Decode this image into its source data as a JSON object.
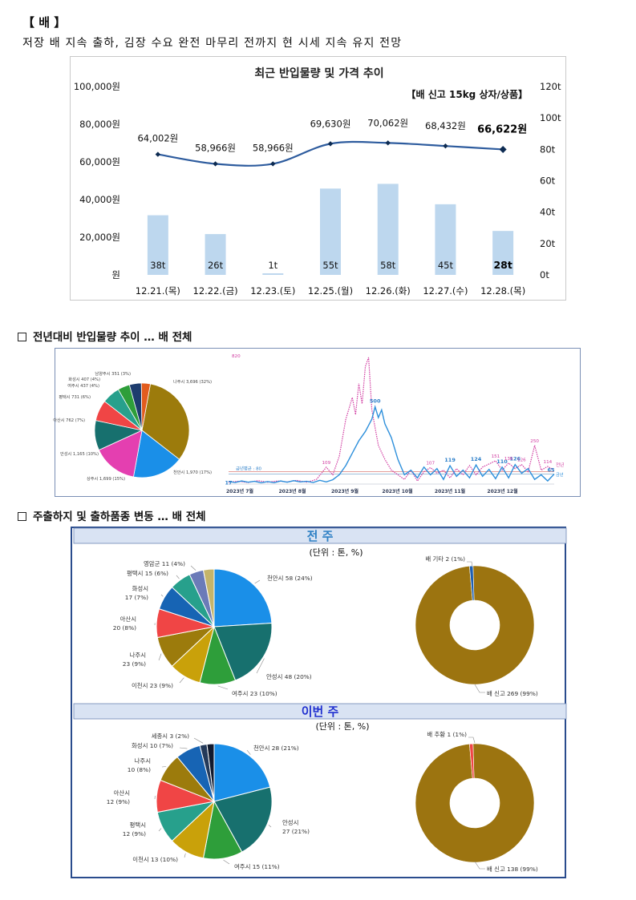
{
  "section": {
    "tag": "【 배 】",
    "headline": "저장 배 지속 출하, 김장 수요 완전 마무리 전까지 현 시세 지속 유지 전망"
  },
  "chart1": {
    "title": "최근 반입물량 및 가격 추이",
    "unit_label": "【배 신고 15kg 상자/상품】",
    "y_left_ticks": [
      "100,000원",
      "80,000원",
      "60,000원",
      "40,000원",
      "20,000원",
      "원"
    ],
    "y_right_ticks": [
      "120t",
      "100t",
      "80t",
      "60t",
      "40t",
      "20t",
      "0t"
    ],
    "bar_color": "#bdd7ee",
    "line_color": "#2e5c9e"
  },
  "chart_data": [
    {
      "type": "bar+line",
      "title": "최근 반입물량 및 가격 추이",
      "subtitle": "【배 신고 15kg 상자/상품】",
      "categories": [
        "12.21.(목)",
        "12.22.(금)",
        "12.23.(토)",
        "12.25.(월)",
        "12.26.(화)",
        "12.27.(수)",
        "12.28.(목)"
      ],
      "series": [
        {
          "kind": "bar",
          "axis": "right",
          "values": [
            38,
            26,
            1,
            55,
            58,
            45,
            28
          ],
          "labels": [
            "38t",
            "26t",
            "1t",
            "55t",
            "58t",
            "45t",
            "28t"
          ]
        },
        {
          "kind": "line",
          "axis": "left",
          "values": [
            64002,
            58966,
            58966,
            69630,
            70062,
            68432,
            66622
          ],
          "labels": [
            "64,002원",
            "58,966원",
            "58,966원",
            "69,630원",
            "70,062원",
            "68,432원",
            "66,622원"
          ]
        }
      ],
      "ylim_left": [
        0,
        100000
      ],
      "ylim_right": [
        0,
        120
      ]
    },
    {
      "type": "pie",
      "title": "전년대비 반입물량 추이 … 배 전체",
      "slices": [
        {
          "label": "나주시 3,696 (32%)",
          "value": 32,
          "color": "#9c7b0c"
        },
        {
          "label": "천안시 1,970 (17%)",
          "value": 17,
          "color": "#1a8fe8"
        },
        {
          "label": "상주시 1,699 (15%)",
          "value": 15,
          "color": "#e43fb0"
        },
        {
          "label": "안성시 1,165 (10%)",
          "value": 10,
          "color": "#17706e"
        },
        {
          "label": "아산시 762 (7%)",
          "value": 7,
          "color": "#f04545"
        },
        {
          "label": "평택시 731 (6%)",
          "value": 6,
          "color": "#27a08c"
        },
        {
          "label": "여주시 437 (4%)",
          "value": 4,
          "color": "#2e9e3a"
        },
        {
          "label": "화성시 407 (4%)",
          "value": 4,
          "color": "#1d3c6e"
        },
        {
          "label": "남양주시 351 (3%)",
          "value": 3,
          "color": "#e25c1e"
        }
      ]
    },
    {
      "type": "line",
      "x_ticks": [
        "2023년 7월",
        "2023년 8월",
        "2023년 9월",
        "2023년 10월",
        "2023년 11월",
        "2023년 12월"
      ],
      "series": [
        {
          "name": "금년",
          "color": "#2d8fdb",
          "points": [
            [
              0,
              17
            ],
            [
              0.02,
              10
            ],
            [
              0.04,
              20
            ],
            [
              0.06,
              12
            ],
            [
              0.08,
              18
            ],
            [
              0.1,
              8
            ],
            [
              0.12,
              16
            ],
            [
              0.14,
              9
            ],
            [
              0.16,
              20
            ],
            [
              0.18,
              12
            ],
            [
              0.2,
              22
            ],
            [
              0.22,
              14
            ],
            [
              0.24,
              18
            ],
            [
              0.26,
              10
            ],
            [
              0.28,
              24
            ],
            [
              0.3,
              14
            ],
            [
              0.32,
              28
            ],
            [
              0.34,
              60
            ],
            [
              0.36,
              120
            ],
            [
              0.38,
              200
            ],
            [
              0.4,
              280
            ],
            [
              0.42,
              340
            ],
            [
              0.44,
              420
            ],
            [
              0.45,
              500
            ],
            [
              0.46,
              430
            ],
            [
              0.47,
              480
            ],
            [
              0.48,
              390
            ],
            [
              0.5,
              300
            ],
            [
              0.52,
              160
            ],
            [
              0.54,
              60
            ],
            [
              0.56,
              90
            ],
            [
              0.58,
              40
            ],
            [
              0.6,
              110
            ],
            [
              0.62,
              60
            ],
            [
              0.64,
              100
            ],
            [
              0.66,
              30
            ],
            [
              0.68,
              119
            ],
            [
              0.7,
              50
            ],
            [
              0.72,
              90
            ],
            [
              0.74,
              40
            ],
            [
              0.76,
              124
            ],
            [
              0.78,
              50
            ],
            [
              0.8,
              95
            ],
            [
              0.82,
              35
            ],
            [
              0.84,
              110
            ],
            [
              0.86,
              40
            ],
            [
              0.88,
              126
            ],
            [
              0.9,
              70
            ],
            [
              0.92,
              100
            ],
            [
              0.94,
              30
            ],
            [
              0.96,
              60
            ],
            [
              0.98,
              20
            ],
            [
              1,
              65
            ]
          ],
          "labels": [
            "17",
            "500",
            "119",
            "124",
            "110",
            "126",
            "65"
          ]
        },
        {
          "name": "전년",
          "color": "#d03aa0",
          "points": [
            [
              0,
              12
            ],
            [
              0.03,
              18
            ],
            [
              0.06,
              10
            ],
            [
              0.09,
              22
            ],
            [
              0.12,
              12
            ],
            [
              0.15,
              20
            ],
            [
              0.18,
              14
            ],
            [
              0.21,
              24
            ],
            [
              0.24,
              12
            ],
            [
              0.27,
              30
            ],
            [
              0.3,
              109
            ],
            [
              0.32,
              60
            ],
            [
              0.34,
              180
            ],
            [
              0.36,
              420
            ],
            [
              0.38,
              560
            ],
            [
              0.39,
              450
            ],
            [
              0.4,
              650
            ],
            [
              0.41,
              520
            ],
            [
              0.42,
              760
            ],
            [
              0.43,
              820
            ],
            [
              0.44,
              480
            ],
            [
              0.46,
              250
            ],
            [
              0.48,
              160
            ],
            [
              0.5,
              90
            ],
            [
              0.52,
              60
            ],
            [
              0.54,
              30
            ],
            [
              0.56,
              90
            ],
            [
              0.58,
              20
            ],
            [
              0.6,
              80
            ],
            [
              0.62,
              107
            ],
            [
              0.64,
              70
            ],
            [
              0.66,
              90
            ],
            [
              0.68,
              40
            ],
            [
              0.7,
              100
            ],
            [
              0.72,
              60
            ],
            [
              0.74,
              120
            ],
            [
              0.76,
              60
            ],
            [
              0.78,
              110
            ],
            [
              0.8,
              130
            ],
            [
              0.82,
              151
            ],
            [
              0.84,
              90
            ],
            [
              0.86,
              136
            ],
            [
              0.88,
              100
            ],
            [
              0.9,
              126
            ],
            [
              0.92,
              80
            ],
            [
              0.94,
              250
            ],
            [
              0.96,
              90
            ],
            [
              0.98,
              114
            ],
            [
              1,
              90
            ]
          ],
          "labels": [
            "109",
            "107",
            "151",
            "136",
            "126",
            "250",
            "114"
          ]
        }
      ],
      "reference": {
        "label": "금년평균 : 80",
        "value": 80
      },
      "legend": [
        "전년",
        "금년"
      ]
    },
    {
      "type": "pie",
      "title": "전 주 — 주출하지",
      "unit": "(단위 : 톤, %)",
      "slices": [
        {
          "label": "천안시 58 (24%)",
          "value": 24,
          "color": "#1a8fe8"
        },
        {
          "label": "안성시 48 (20%)",
          "value": 20,
          "color": "#17706e"
        },
        {
          "label": "여주시 23 (10%)",
          "value": 10,
          "color": "#2e9e3a"
        },
        {
          "label": "이천시 23 (9%)",
          "value": 9,
          "color": "#c9a10a"
        },
        {
          "label": "나주시 23 (9%)",
          "value": 9,
          "color": "#9c7b0c"
        },
        {
          "label": "아산시 20 (8%)",
          "value": 8,
          "color": "#f04545"
        },
        {
          "label": "화성시 17 (7%)",
          "value": 7,
          "color": "#1764b4"
        },
        {
          "label": "평택시 15 (6%)",
          "value": 6,
          "color": "#27a08c"
        },
        {
          "label": "영암군 11 (4%)",
          "value": 4,
          "color": "#6b7bb8"
        },
        {
          "label": "",
          "value": 3,
          "color": "#c4b46a"
        }
      ]
    },
    {
      "type": "donut",
      "title": "전 주 — 출하품종",
      "slices": [
        {
          "label": "배 신고 269 (99%)",
          "value": 99,
          "color": "#9c7410"
        },
        {
          "label": "배 기타 2 (1%)",
          "value": 1,
          "color": "#1e5fb3"
        }
      ]
    },
    {
      "type": "pie",
      "title": "이번 주 — 주출하지",
      "unit": "(단위 : 톤, %)",
      "slices": [
        {
          "label": "천안시 28 (21%)",
          "value": 21,
          "color": "#1a8fe8"
        },
        {
          "label": "안성시 27 (21%)",
          "value": 21,
          "color": "#17706e"
        },
        {
          "label": "여주시 15 (11%)",
          "value": 11,
          "color": "#2e9e3a"
        },
        {
          "label": "이천시 13 (10%)",
          "value": 10,
          "color": "#c9a10a"
        },
        {
          "label": "평택시 12 (9%)",
          "value": 9,
          "color": "#27a08c"
        },
        {
          "label": "아산시 12 (9%)",
          "value": 9,
          "color": "#f04545"
        },
        {
          "label": "나주시 10 (8%)",
          "value": 8,
          "color": "#9c7b0c"
        },
        {
          "label": "화성시 10 (7%)",
          "value": 7,
          "color": "#1764b4"
        },
        {
          "label": "세종시 3 (2%)",
          "value": 2,
          "color": "#243a5a"
        },
        {
          "label": "",
          "value": 2,
          "color": "#111a2e"
        }
      ]
    },
    {
      "type": "donut",
      "title": "이번 주 — 출하품종",
      "slices": [
        {
          "label": "배 신고 138 (99%)",
          "value": 99,
          "color": "#9c7410"
        },
        {
          "label": "배 추황 1 (1%)",
          "value": 1,
          "color": "#f04545"
        }
      ]
    }
  ],
  "subheads": {
    "yoy": "전년대비 반입물량 추이 … 배 전체",
    "origin": "주출하지 및 출하품종 변동 … 배 전체"
  },
  "panel": {
    "band1": "전 주",
    "band2": "이번 주",
    "unit": "(단위 : 톤, %)",
    "band_bg": "#d9e3f3",
    "band1_color": "#2c7fc4",
    "band2_color": "#1f2fcf"
  }
}
